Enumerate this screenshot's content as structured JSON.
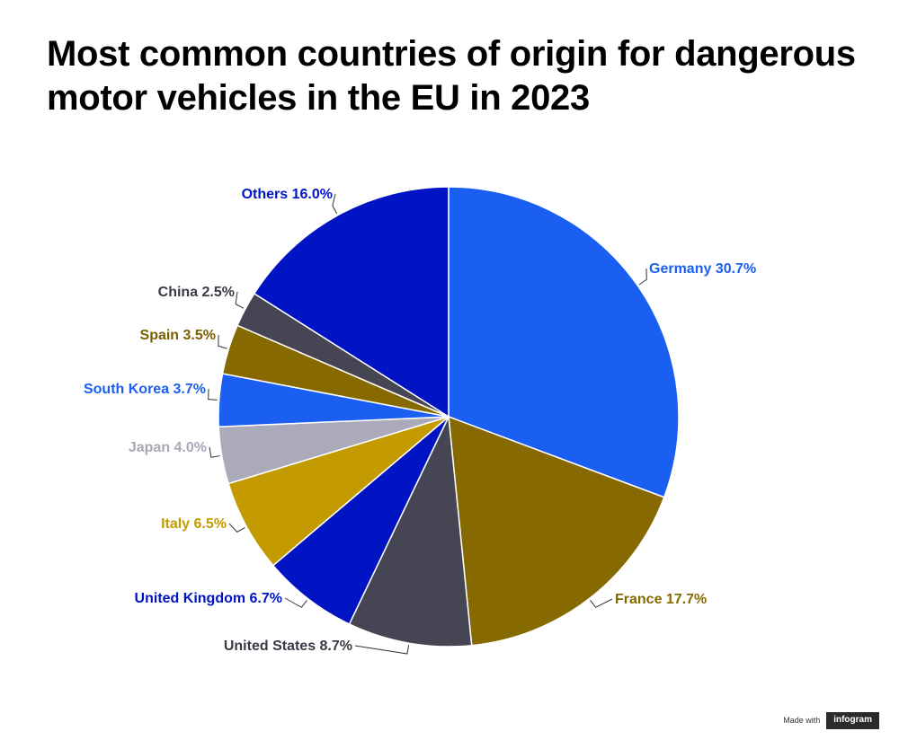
{
  "chart_data": {
    "type": "pie",
    "title": "Most common countries of origin for dangerous motor vehicles in the EU in 2023",
    "slices": [
      {
        "label": "Germany 30.7%",
        "value": 30.7,
        "color": "#1a5ff2",
        "label_color": "#1a5ff2"
      },
      {
        "label": "France 17.7%",
        "value": 17.7,
        "color": "#866900",
        "label_color": "#866900"
      },
      {
        "label": "United States 8.7%",
        "value": 8.7,
        "color": "#454553",
        "label_color": "#3a3a46"
      },
      {
        "label": "United Kingdom 6.7%",
        "value": 6.7,
        "color": "#0014c4",
        "label_color": "#0014c4"
      },
      {
        "label": "Italy 6.5%",
        "value": 6.5,
        "color": "#c39b00",
        "label_color": "#c39b00"
      },
      {
        "label": "Japan 4.0%",
        "value": 4.0,
        "color": "#aaaabb",
        "label_color": "#a7a7b6"
      },
      {
        "label": "South Korea 3.7%",
        "value": 3.7,
        "color": "#1a5ff2",
        "label_color": "#1a5ff2"
      },
      {
        "label": "Spain 3.5%",
        "value": 3.5,
        "color": "#866900",
        "label_color": "#7a5f00"
      },
      {
        "label": "China 2.5%",
        "value": 2.5,
        "color": "#454553",
        "label_color": "#3a3a46"
      },
      {
        "label": "Others 16.0%",
        "value": 16.0,
        "color": "#0014c4",
        "label_color": "#0014c4"
      }
    ]
  },
  "footer": {
    "made_with": "Made with",
    "brand": "infogram"
  }
}
